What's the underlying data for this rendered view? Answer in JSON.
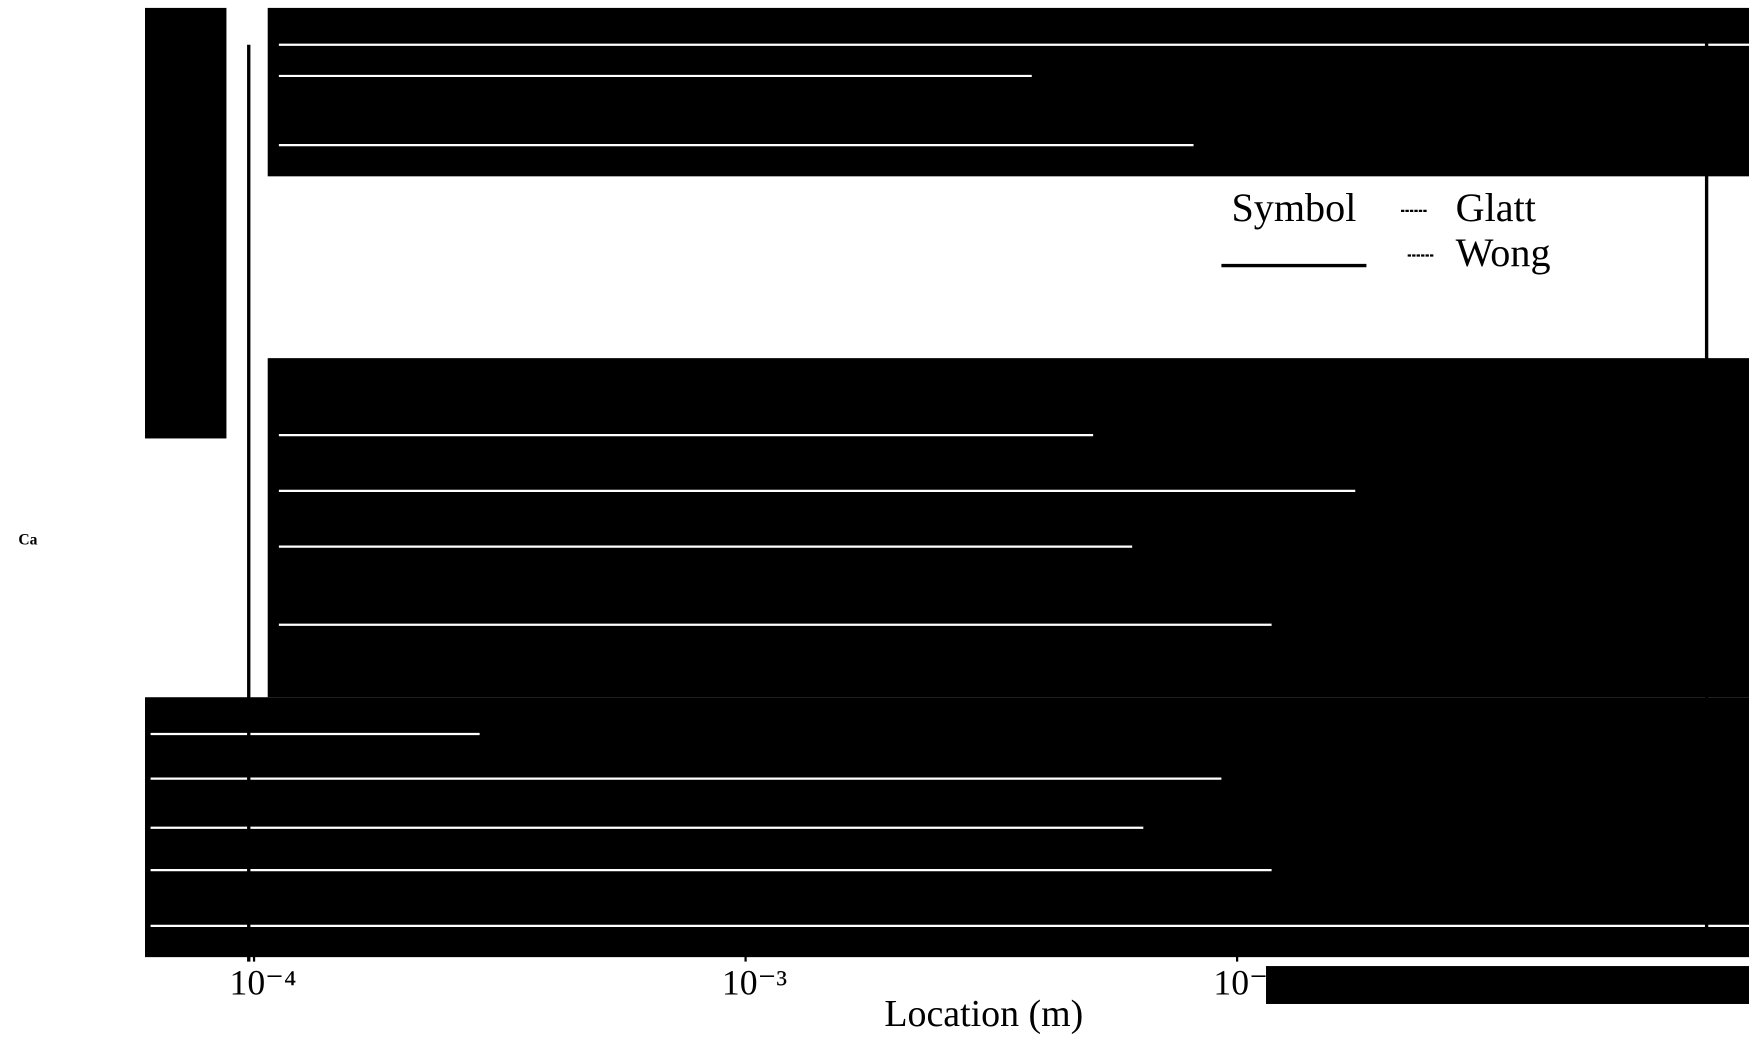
{
  "chart_data": {
    "type": "line",
    "x_label": "Location (m)",
    "y_label": "Ca",
    "legend": {
      "title": "Symbol",
      "entries": [
        "Glatt",
        "Wong"
      ]
    },
    "log_x": true,
    "xlim": [
      6e-05,
      0.11
    ],
    "xticks": [
      {
        "value": 0.0001,
        "label": "10⁻⁴"
      },
      {
        "value": 0.001,
        "label": "10⁻³"
      },
      {
        "value": 0.01,
        "label": "10⁻²"
      }
    ]
  }
}
